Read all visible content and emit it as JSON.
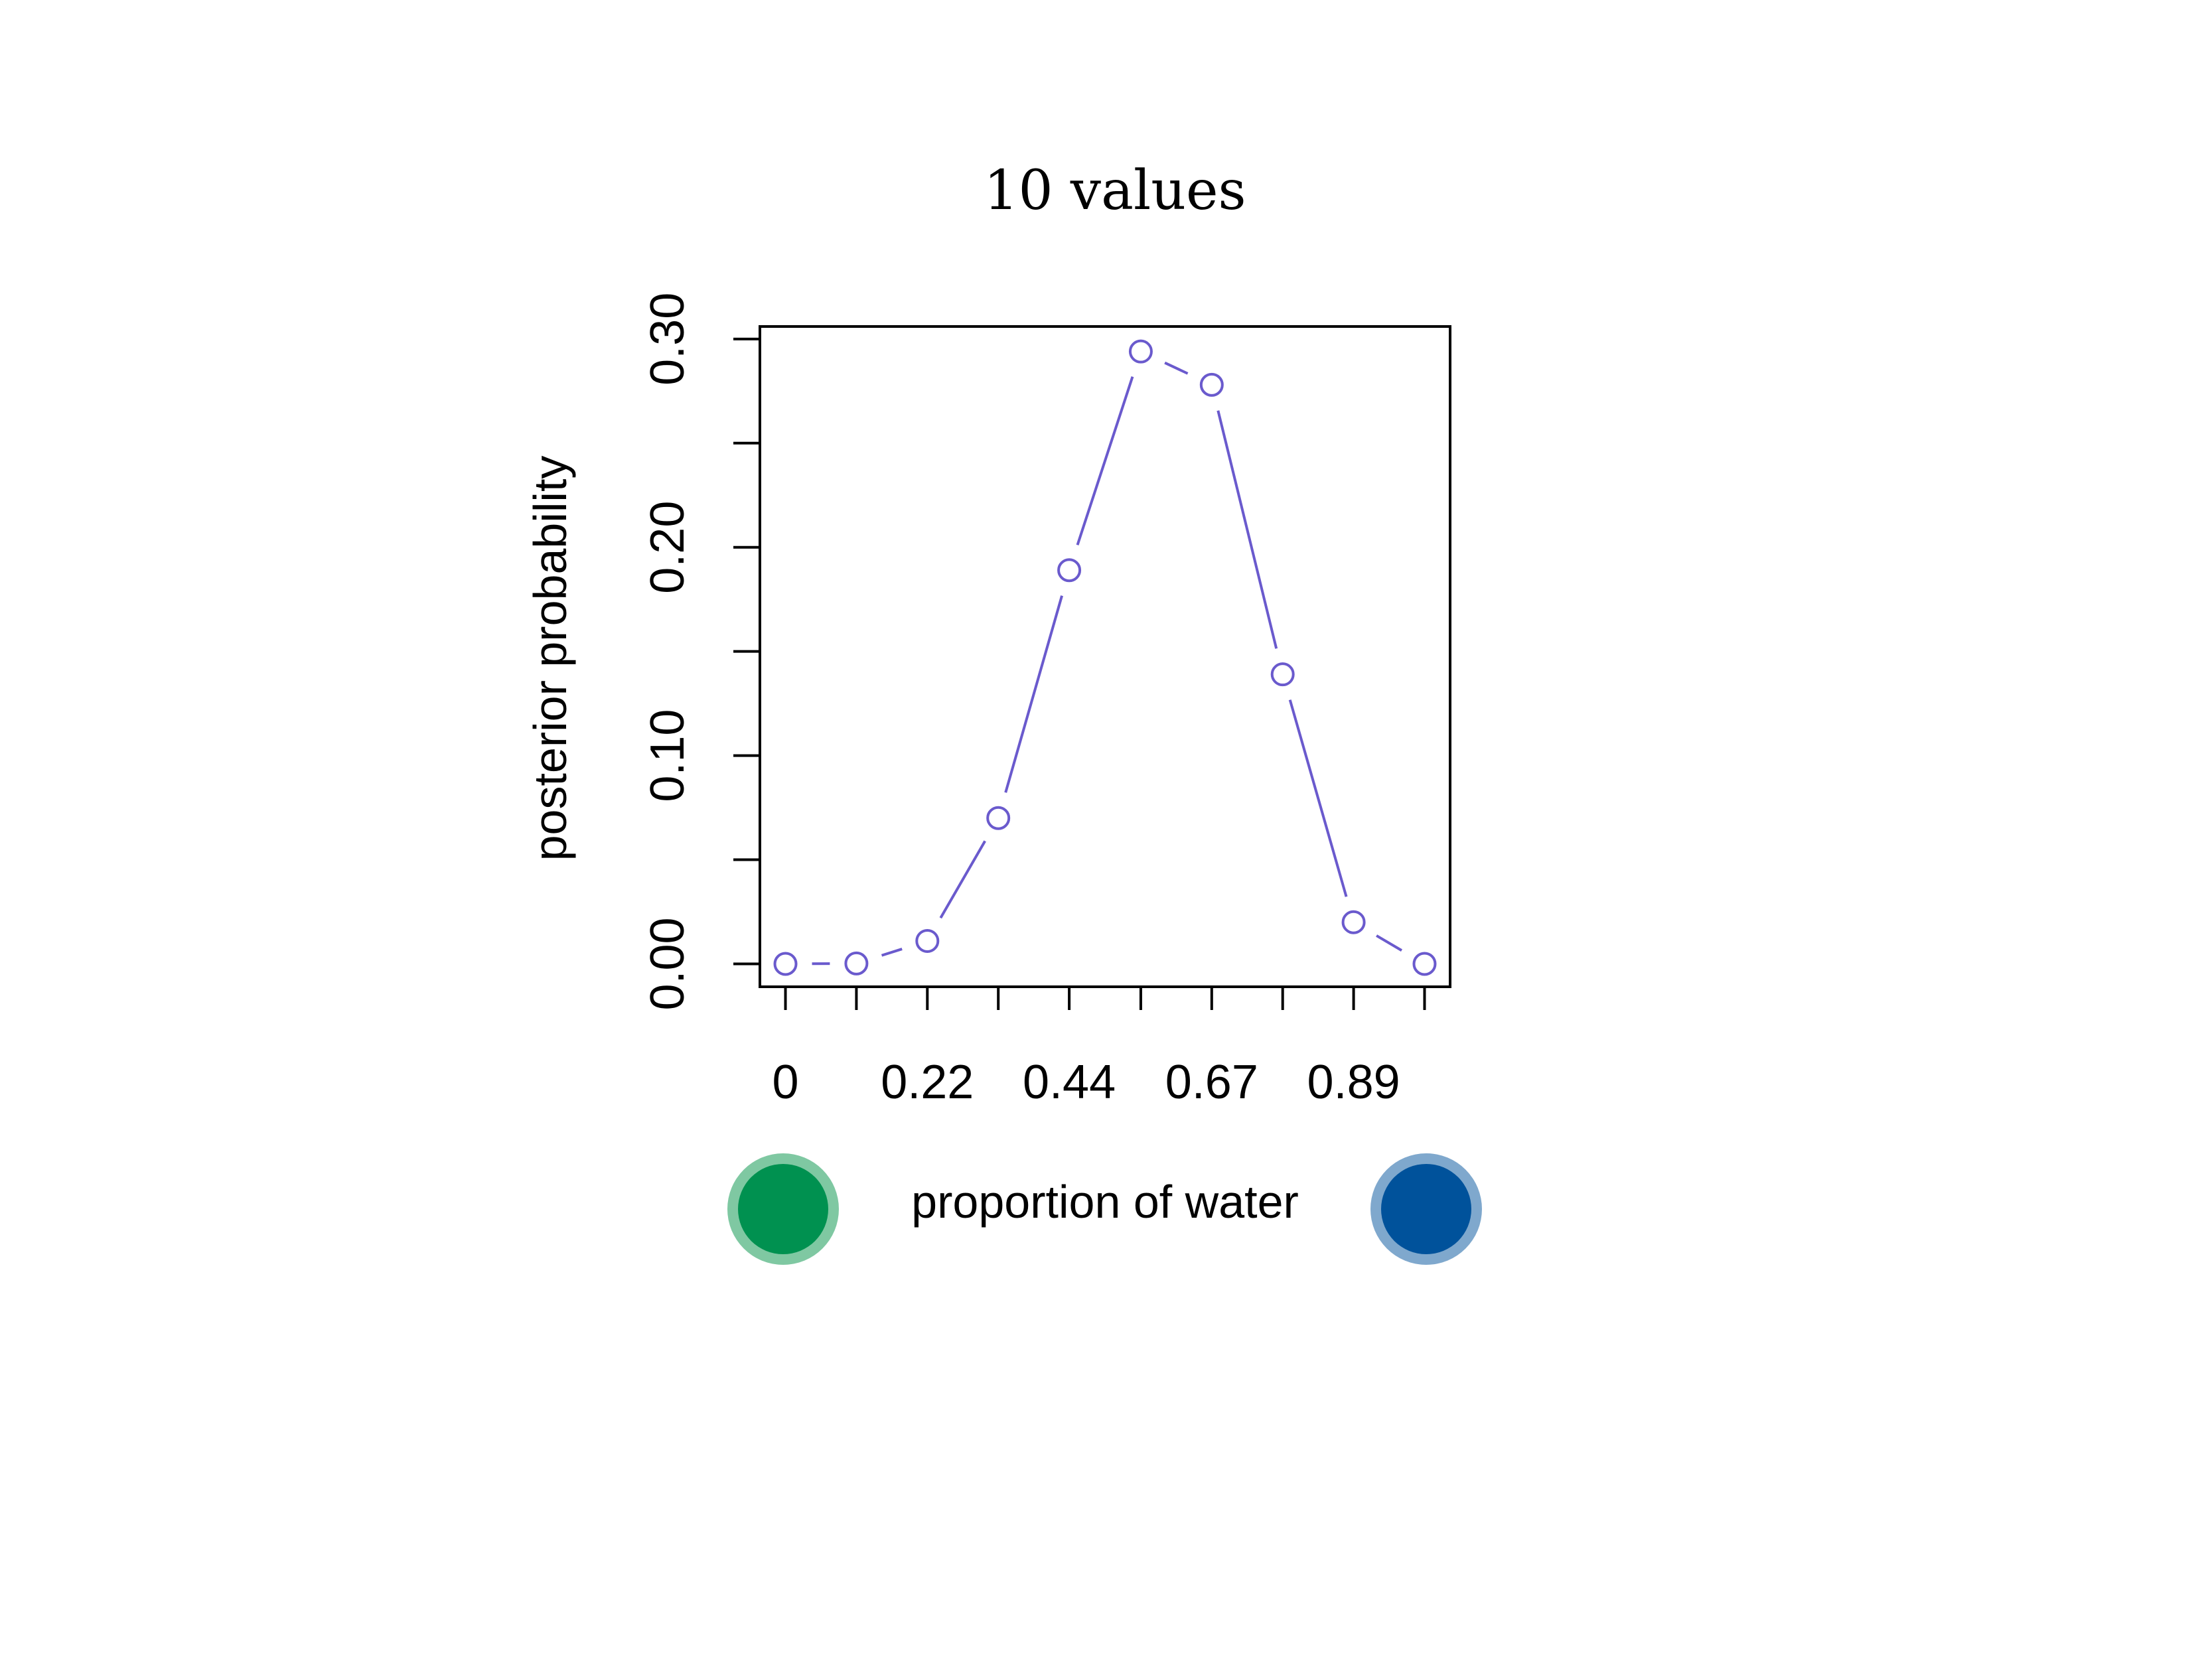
{
  "chart_data": {
    "type": "line",
    "title": "10 values",
    "xlabel": "proportion of water",
    "ylabel": "posterior probability",
    "x": [
      0,
      0.111,
      0.222,
      0.333,
      0.444,
      0.556,
      0.667,
      0.778,
      0.889,
      1.0
    ],
    "values": [
      0.0,
      0.0002,
      0.011,
      0.07,
      0.189,
      0.294,
      0.278,
      0.139,
      0.02,
      0.0
    ],
    "x_tick_labels": [
      "0",
      "0.22",
      "0.44",
      "0.67",
      "0.89"
    ],
    "x_tick_label_values": [
      0,
      0.222,
      0.444,
      0.667,
      0.889
    ],
    "y_tick_labels": [
      "0.00",
      "0.10",
      "0.20",
      "0.30"
    ],
    "y_tick_label_values": [
      0,
      0.1,
      0.2,
      0.3
    ],
    "y_minor_ticks": [
      0.05,
      0.15,
      0.25
    ],
    "xlim": [
      -0.04,
      1.04
    ],
    "ylim": [
      -0.011,
      0.306
    ],
    "line_color": "#6a5acd",
    "legend_markers": [
      {
        "name": "water-sample-green",
        "color": "#009150",
        "ring": "#7fc8a2"
      },
      {
        "name": "water-sample-blue",
        "color": "#00529b",
        "ring": "#7fa8cd"
      }
    ]
  }
}
